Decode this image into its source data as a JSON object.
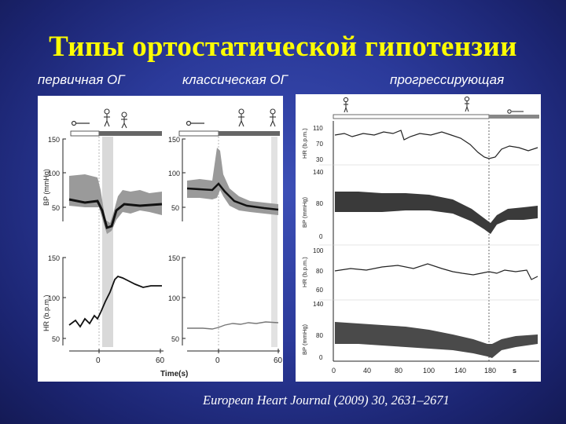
{
  "slide": {
    "title": "Типы ортостатической гипотензии",
    "subtitles": {
      "initial": "первичная ОГ",
      "classic": "классическая ОГ",
      "progressive": "прогрессирующая"
    },
    "citation": "European Heart Journal (2009) 30, 2631–2671"
  },
  "left_figure": {
    "bp_axis_label": "BP (mmHg)",
    "hr_axis_label": "HR (b.p.m.)",
    "bp_ticks_left": [
      "150",
      "100",
      "50"
    ],
    "hr_ticks_left": [
      "150",
      "100",
      "50"
    ],
    "bp_ticks_mid": [
      "150",
      "100",
      "50"
    ],
    "hr_ticks_mid": [
      "150",
      "100",
      "50"
    ],
    "time_ticks_a": [
      "0",
      "60"
    ],
    "time_ticks_b": [
      "0",
      "60"
    ],
    "time_label": "Time(s)"
  },
  "right_figure": {
    "hr_top_label": "HR (b.p.m.)",
    "bp_top_label": "BP (mmHg)",
    "hr_bottom_label": "HR (b.p.m.)",
    "bp_bottom_label": "BP (mmHg)",
    "hr_top_ticks": [
      "110",
      "70",
      "30"
    ],
    "bp_top_ticks": [
      "140",
      "80",
      "0"
    ],
    "hr_bottom_ticks": [
      "100",
      "80",
      "60"
    ],
    "bp_bottom_ticks": [
      "140",
      "80",
      "0"
    ],
    "x_ticks": [
      "0",
      "40",
      "80",
      "100",
      "140",
      "180"
    ],
    "x_unit": "s"
  }
}
